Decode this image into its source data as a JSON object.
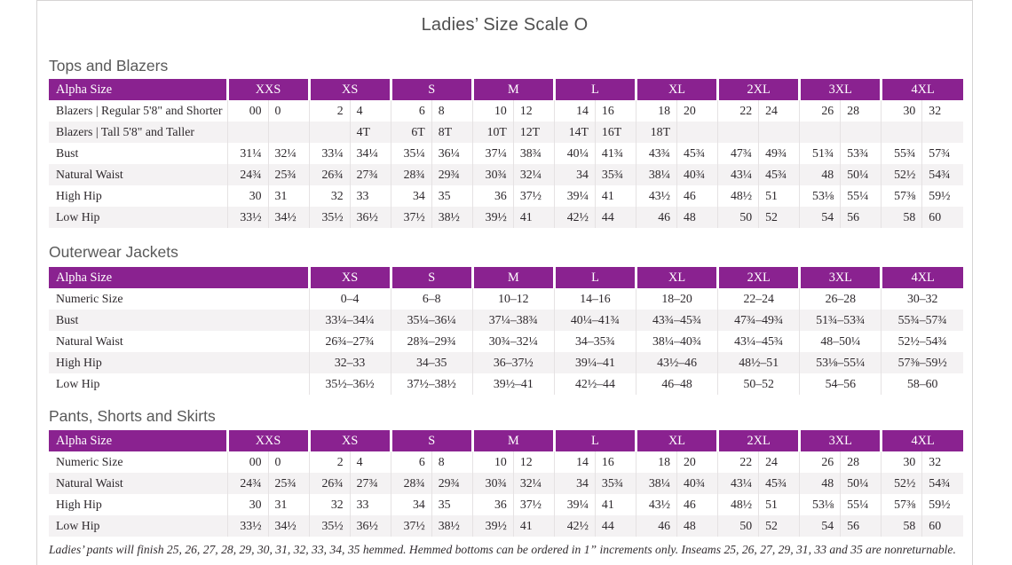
{
  "page_title": "Ladies’ Size Scale O",
  "footnote": "Ladies’ pants will finish 25, 26, 27, 28, 29, 30, 31, 32, 33, 34, 35 hemmed. Hemmed bottoms can be ordered in 1” increments only. Inseams 25, 26, 27, 29, 31, 33 and 35 are nonreturnable.",
  "colors": {
    "header_bg": "#8a2290",
    "header_text": "#ffffff",
    "zebra_row": "#f4f2f3",
    "cell_border": "#e5e2e3",
    "page_border": "#d6d4d4",
    "body_text": "#2d282c",
    "heading_text": "#595959"
  },
  "tables": [
    {
      "id": "tops-and-blazers",
      "section_title": "Tops and Blazers",
      "paired": true,
      "label_header": "Alpha Size",
      "sizes": [
        "XXS",
        "XS",
        "S",
        "M",
        "L",
        "XL",
        "2XL",
        "3XL",
        "4XL"
      ],
      "rows": [
        {
          "label": "Blazers  |  Regular 5'8\" and Shorter",
          "values": [
            "00",
            "0",
            "2",
            "4",
            "6",
            "8",
            "10",
            "12",
            "14",
            "16",
            "18",
            "20",
            "22",
            "24",
            "26",
            "28",
            "30",
            "32"
          ]
        },
        {
          "label": "Blazers  |  Tall 5'8\" and Taller",
          "values": [
            "",
            "",
            "",
            "4T",
            "6T",
            "8T",
            "10T",
            "12T",
            "14T",
            "16T",
            "18T",
            "",
            "",
            "",
            "",
            "",
            "",
            ""
          ]
        },
        {
          "label": "Bust",
          "values": [
            "31¼",
            "32¼",
            "33¼",
            "34¼",
            "35¼",
            "36¼",
            "37¼",
            "38¾",
            "40¼",
            "41¾",
            "43¾",
            "45¾",
            "47¾",
            "49¾",
            "51¾",
            "53¾",
            "55¾",
            "57¾"
          ]
        },
        {
          "label": "Natural Waist",
          "values": [
            "24¾",
            "25¾",
            "26¾",
            "27¾",
            "28¾",
            "29¾",
            "30¾",
            "32¼",
            "34",
            "35¾",
            "38¼",
            "40¾",
            "43¼",
            "45¾",
            "48",
            "50¼",
            "52½",
            "54¾"
          ]
        },
        {
          "label": "High Hip",
          "values": [
            "30",
            "31",
            "32",
            "33",
            "34",
            "35",
            "36",
            "37½",
            "39¼",
            "41",
            "43½",
            "46",
            "48½",
            "51",
            "53⅛",
            "55¼",
            "57⅜",
            "59½"
          ]
        },
        {
          "label": "Low Hip",
          "values": [
            "33½",
            "34½",
            "35½",
            "36½",
            "37½",
            "38½",
            "39½",
            "41",
            "42½",
            "44",
            "46",
            "48",
            "50",
            "52",
            "54",
            "56",
            "58",
            "60"
          ]
        }
      ]
    },
    {
      "id": "outerwear-jackets",
      "section_title": "Outerwear Jackets",
      "paired": false,
      "label_header": "Alpha Size",
      "sizes": [
        "XS",
        "S",
        "M",
        "L",
        "XL",
        "2XL",
        "3XL",
        "4XL"
      ],
      "rows": [
        {
          "label": "Numeric Size",
          "values": [
            "0–4",
            "6–8",
            "10–12",
            "14–16",
            "18–20",
            "22–24",
            "26–28",
            "30–32"
          ]
        },
        {
          "label": "Bust",
          "values": [
            "33¼–34¼",
            "35¼–36¼",
            "37¼–38¾",
            "40¼–41¾",
            "43¾–45¾",
            "47¾–49¾",
            "51¾–53¾",
            "55¾–57¾"
          ]
        },
        {
          "label": "Natural Waist",
          "values": [
            "26¾–27¾",
            "28¾–29¾",
            "30¾–32¼",
            "34–35¾",
            "38¼–40¾",
            "43¼–45¾",
            "48–50¼",
            "52½–54¾"
          ]
        },
        {
          "label": "High Hip",
          "values": [
            "32–33",
            "34–35",
            "36–37½",
            "39¼–41",
            "43½–46",
            "48½–51",
            "53⅛–55¼",
            "57⅜–59½"
          ]
        },
        {
          "label": "Low Hip",
          "values": [
            "35½–36½",
            "37½–38½",
            "39½–41",
            "42½–44",
            "46–48",
            "50–52",
            "54–56",
            "58–60"
          ]
        }
      ]
    },
    {
      "id": "pants-shorts-and-skirts",
      "section_title": "Pants, Shorts and Skirts",
      "paired": true,
      "label_header": "Alpha Size",
      "sizes": [
        "XXS",
        "XS",
        "S",
        "M",
        "L",
        "XL",
        "2XL",
        "3XL",
        "4XL"
      ],
      "rows": [
        {
          "label": "Numeric Size",
          "values": [
            "00",
            "0",
            "2",
            "4",
            "6",
            "8",
            "10",
            "12",
            "14",
            "16",
            "18",
            "20",
            "22",
            "24",
            "26",
            "28",
            "30",
            "32"
          ]
        },
        {
          "label": "Natural Waist",
          "values": [
            "24¾",
            "25¾",
            "26¾",
            "27¾",
            "28¾",
            "29¾",
            "30¾",
            "32¼",
            "34",
            "35¾",
            "38¼",
            "40¾",
            "43¼",
            "45¾",
            "48",
            "50¼",
            "52½",
            "54¾"
          ]
        },
        {
          "label": "High Hip",
          "values": [
            "30",
            "31",
            "32",
            "33",
            "34",
            "35",
            "36",
            "37½",
            "39¼",
            "41",
            "43½",
            "46",
            "48½",
            "51",
            "53⅛",
            "55¼",
            "57⅜",
            "59½"
          ]
        },
        {
          "label": "Low Hip",
          "values": [
            "33½",
            "34½",
            "35½",
            "36½",
            "37½",
            "38½",
            "39½",
            "41",
            "42½",
            "44",
            "46",
            "48",
            "50",
            "52",
            "54",
            "56",
            "58",
            "60"
          ]
        }
      ]
    }
  ]
}
